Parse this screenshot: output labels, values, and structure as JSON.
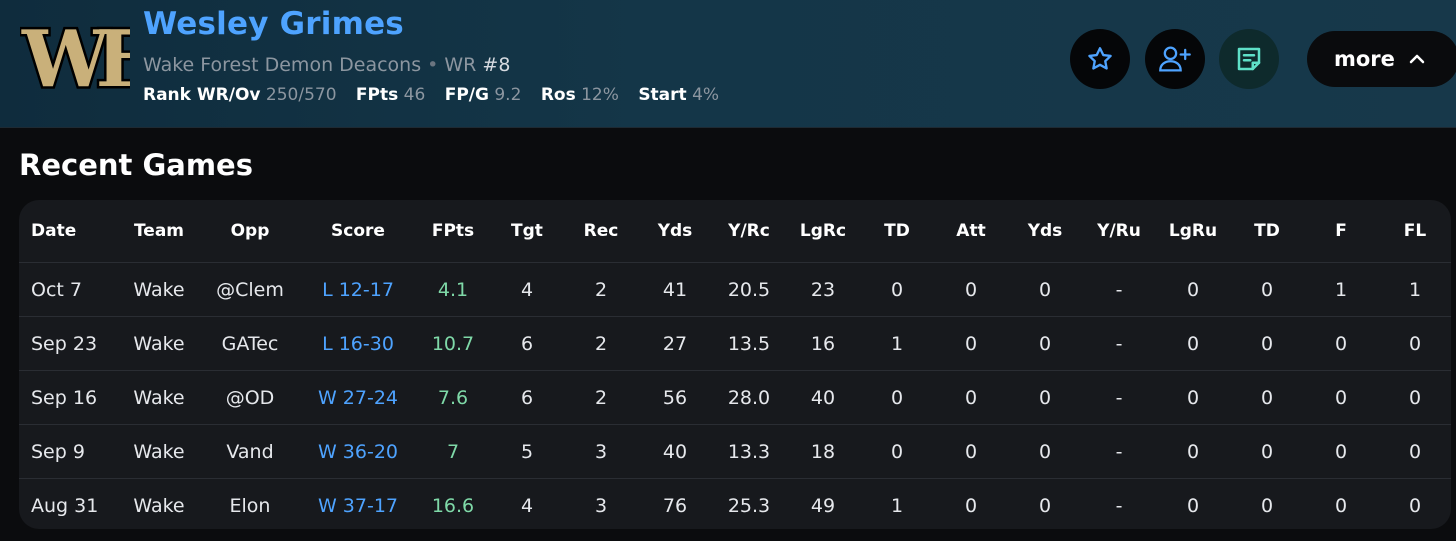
{
  "player": {
    "name": "Wesley Grimes",
    "team": "Wake Forest Demon Deacons",
    "separator": "•",
    "position": "WR",
    "number": "#8",
    "logo_text": "WF"
  },
  "stats": [
    {
      "label": "Rank WR/Ov",
      "value": "250/570"
    },
    {
      "label": "FPts",
      "value": "46"
    },
    {
      "label": "FP/G",
      "value": "9.2"
    },
    {
      "label": "Ros",
      "value": "12%"
    },
    {
      "label": "Start",
      "value": "4%"
    }
  ],
  "actions": {
    "star_icon": "star-icon",
    "add_user_icon": "add-user-icon",
    "note_icon": "note-icon",
    "more_label": "more"
  },
  "colors": {
    "accent": "#4ea3ff",
    "fpts": "#7fd9a8",
    "logo_gold": "#c9b07a"
  },
  "recent_games": {
    "title": "Recent Games",
    "columns": [
      "Date",
      "Team",
      "Opp",
      "Score",
      "FPts",
      "Tgt",
      "Rec",
      "Yds",
      "Y/Rc",
      "LgRc",
      "TD",
      "Att",
      "Yds",
      "Y/Ru",
      "LgRu",
      "TD",
      "F",
      "FL"
    ],
    "rows": [
      [
        "Oct 7",
        "Wake",
        "@Clem",
        "L 12-17",
        "4.1",
        "4",
        "2",
        "41",
        "20.5",
        "23",
        "0",
        "0",
        "0",
        "-",
        "0",
        "0",
        "1",
        "1"
      ],
      [
        "Sep 23",
        "Wake",
        "GATec",
        "L 16-30",
        "10.7",
        "6",
        "2",
        "27",
        "13.5",
        "16",
        "1",
        "0",
        "0",
        "-",
        "0",
        "0",
        "0",
        "0"
      ],
      [
        "Sep 16",
        "Wake",
        "@OD",
        "W 27-24",
        "7.6",
        "6",
        "2",
        "56",
        "28.0",
        "40",
        "0",
        "0",
        "0",
        "-",
        "0",
        "0",
        "0",
        "0"
      ],
      [
        "Sep 9",
        "Wake",
        "Vand",
        "W 36-20",
        "7",
        "5",
        "3",
        "40",
        "13.3",
        "18",
        "0",
        "0",
        "0",
        "-",
        "0",
        "0",
        "0",
        "0"
      ],
      [
        "Aug 31",
        "Wake",
        "Elon",
        "W 37-17",
        "16.6",
        "4",
        "3",
        "76",
        "25.3",
        "49",
        "1",
        "0",
        "0",
        "-",
        "0",
        "0",
        "0",
        "0"
      ]
    ]
  }
}
